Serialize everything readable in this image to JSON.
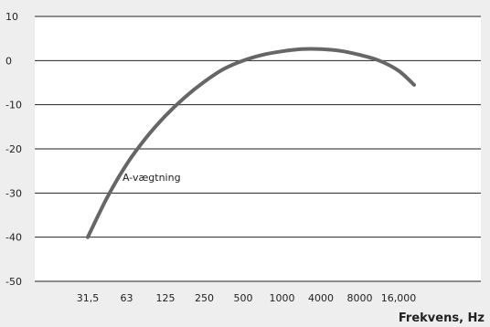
{
  "chart_data": {
    "type": "line",
    "title": "",
    "xlabel": "Frekvens, Hz",
    "ylabel": "",
    "x_tick_labels": [
      "31,5",
      "63",
      "125",
      "250",
      "500",
      "1000",
      "4000",
      "8000",
      "16,000"
    ],
    "y_ticks": [
      10,
      0,
      -10,
      -20,
      -30,
      -40,
      -50
    ],
    "y_tick_labels": [
      "10",
      "0",
      "-10",
      "-20",
      "-30",
      "-40",
      "-50"
    ],
    "ylim": [
      -50,
      10
    ],
    "grid": "horizontal",
    "annotation": "A-vægtning",
    "series": [
      {
        "x_index": [
          0.0,
          0.5,
          1.0,
          1.5,
          2.0,
          2.5,
          3.0,
          3.5,
          4.0,
          4.5,
          5.0,
          5.5,
          6.0,
          6.5,
          7.0,
          7.5,
          8.0,
          8.4
        ],
        "values": [
          -40.0,
          -31.0,
          -23.5,
          -17.5,
          -12.5,
          -8.3,
          -4.8,
          -1.9,
          0.0,
          1.3,
          2.1,
          2.6,
          2.6,
          2.2,
          1.3,
          0.0,
          -2.3,
          -5.5
        ]
      }
    ],
    "colors": {
      "curve": "#666666",
      "grid": "#222222",
      "plot_background": "#ffffff",
      "page_background": "#eeeeee"
    }
  }
}
